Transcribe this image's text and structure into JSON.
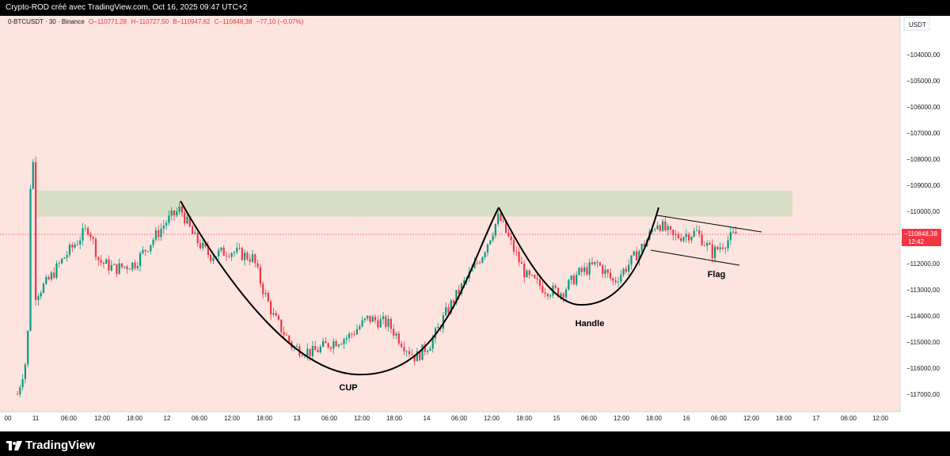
{
  "title_bar": {
    "text": "Crypto-ROD créé avec TradingView.com, Oct 16, 2025 09:47 UTC+2"
  },
  "symbol_header": {
    "symbol": "0-BTCUSDT · 30 · Binance",
    "open": "O−110771,28",
    "high": "H−110727,50",
    "low": "B−110947,62",
    "close": "C−110848,38",
    "change": "−77,10 (−0,07%)"
  },
  "price_axis": {
    "currency": "USDT",
    "labels": [
      "−104000,00",
      "−105000,00",
      "−106000,00",
      "−107000,00",
      "−108000,00",
      "−109000,00",
      "−110000,00",
      "−111000,00",
      "−112000,00",
      "−113000,00",
      "−114000,00",
      "−115000,00",
      "−116000,00",
      "−117000,00"
    ]
  },
  "current_price": {
    "value": "−110848,38",
    "countdown": "12:42"
  },
  "time_axis": {
    "labels": [
      "00",
      "11",
      "06:00",
      "12:00",
      "18:00",
      "12",
      "06:00",
      "12:00",
      "18:00",
      "13",
      "06:00",
      "12:00",
      "18:00",
      "14",
      "06:00",
      "12:00",
      "18:00",
      "15",
      "06:00",
      "12:00",
      "18:00",
      "16",
      "06:00",
      "12:00",
      "18:00",
      "17",
      "06:00",
      "12:00"
    ]
  },
  "annotations": {
    "cup": "CUP",
    "handle": "Handle",
    "flag": "Flag"
  },
  "branding": {
    "logo_text": "TradingView"
  },
  "colors": {
    "background": "#fde4df",
    "up": "#089981",
    "down": "#f23645",
    "zone": "#d8dec4",
    "axis_bg": "#ffffff"
  },
  "chart_data": {
    "type": "candlestick",
    "title": "0-BTCUSDT · 30 · Binance",
    "price_scale": "inverted (labels shown with minus sign, −104000 at top, −117000 at bottom)",
    "ylim": [
      -117500,
      -103500
    ],
    "x_range": [
      "Oct 10 23:00",
      "Oct 17 12:00"
    ],
    "resistance_zone": [
      -109200,
      -110200
    ],
    "current_price": -110848.38,
    "key_points": [
      {
        "label": "start",
        "time": "Oct 10 23:00",
        "price": -117000
      },
      {
        "label": "spike",
        "time": "Oct 11 00:30",
        "price": -104000
      },
      {
        "label": "cup left rim",
        "time": "Oct 12 02:00",
        "price": -109700
      },
      {
        "label": "cup bottom",
        "time": "Oct 13 12:00",
        "price": -115700
      },
      {
        "label": "cup right rim",
        "time": "Oct 14 14:00",
        "price": -109900
      },
      {
        "label": "handle low",
        "time": "Oct 15 06:00",
        "price": -113300
      },
      {
        "label": "flag start",
        "time": "Oct 15 18:00",
        "price": -110100
      },
      {
        "label": "last",
        "time": "Oct 16 09:30",
        "price": -110848.38
      }
    ]
  }
}
